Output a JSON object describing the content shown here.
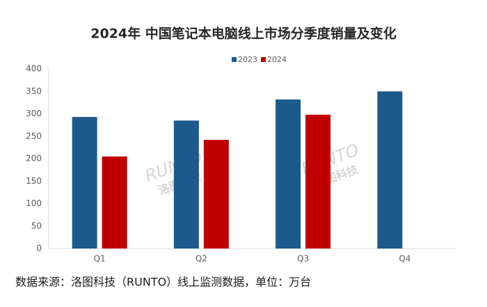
{
  "chart_data": {
    "type": "bar",
    "title": "2024年 中国笔记本电脑线上市场分季度销量及变化",
    "categories": [
      "Q1",
      "Q2",
      "Q3",
      "Q4"
    ],
    "series": [
      {
        "name": "2023",
        "color": "#1c5a8d",
        "values": [
          293,
          285,
          332,
          350
        ]
      },
      {
        "name": "2024",
        "color": "#c00000",
        "values": [
          205,
          242,
          298,
          null
        ]
      }
    ],
    "ylim": [
      0,
      400
    ],
    "yticks": [
      0,
      50,
      100,
      150,
      200,
      250,
      300,
      350,
      400
    ],
    "grid": false,
    "legend": "top",
    "source": "数据来源：洛图科技（RUNTO）线上监测数据，单位：万台",
    "watermark": {
      "brand": "RUNTO",
      "name": "洛图科技"
    }
  }
}
